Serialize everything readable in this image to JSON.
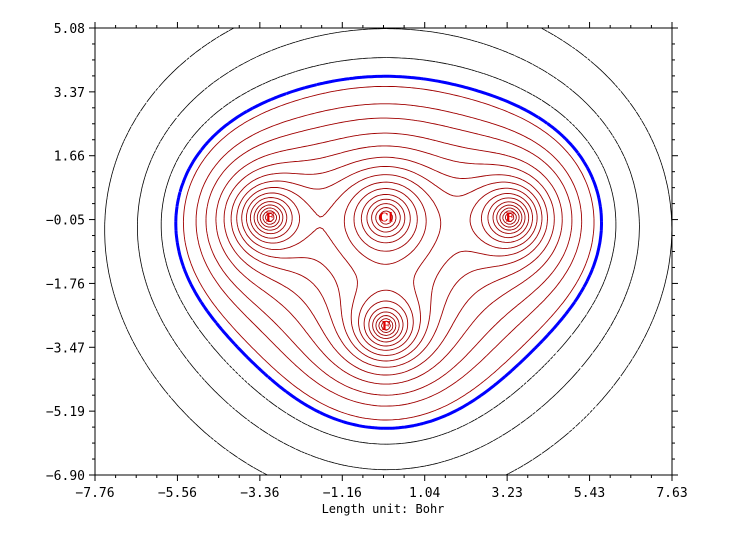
{
  "chart_data": {
    "type": "contour",
    "title": "",
    "xlabel": "Length unit: Bohr",
    "ylabel": "",
    "xlim": [
      -7.76,
      7.63
    ],
    "ylim": [
      -6.9,
      5.08
    ],
    "xticks": [
      "−7.76",
      "−5.56",
      "−3.36",
      "−1.16",
      "1.04",
      "3.23",
      "5.43",
      "7.63"
    ],
    "yticks": [
      "5.08",
      "3.37",
      "1.66",
      "−0.05",
      "−1.76",
      "−3.47",
      "−5.19",
      "−6.90"
    ],
    "atoms": [
      {
        "label": "Cl",
        "x": 0.0,
        "y": 0.0
      },
      {
        "label": "F",
        "x": -3.1,
        "y": 0.0
      },
      {
        "label": "F",
        "x": 3.3,
        "y": 0.0
      },
      {
        "label": "F",
        "x": 0.0,
        "y": -2.9
      }
    ],
    "colors": {
      "positive_contours": "#a00000",
      "negative_contours": "#000000",
      "vdw_surface": "#0000ff",
      "atom_labels": "#e00000"
    },
    "grid": false
  }
}
